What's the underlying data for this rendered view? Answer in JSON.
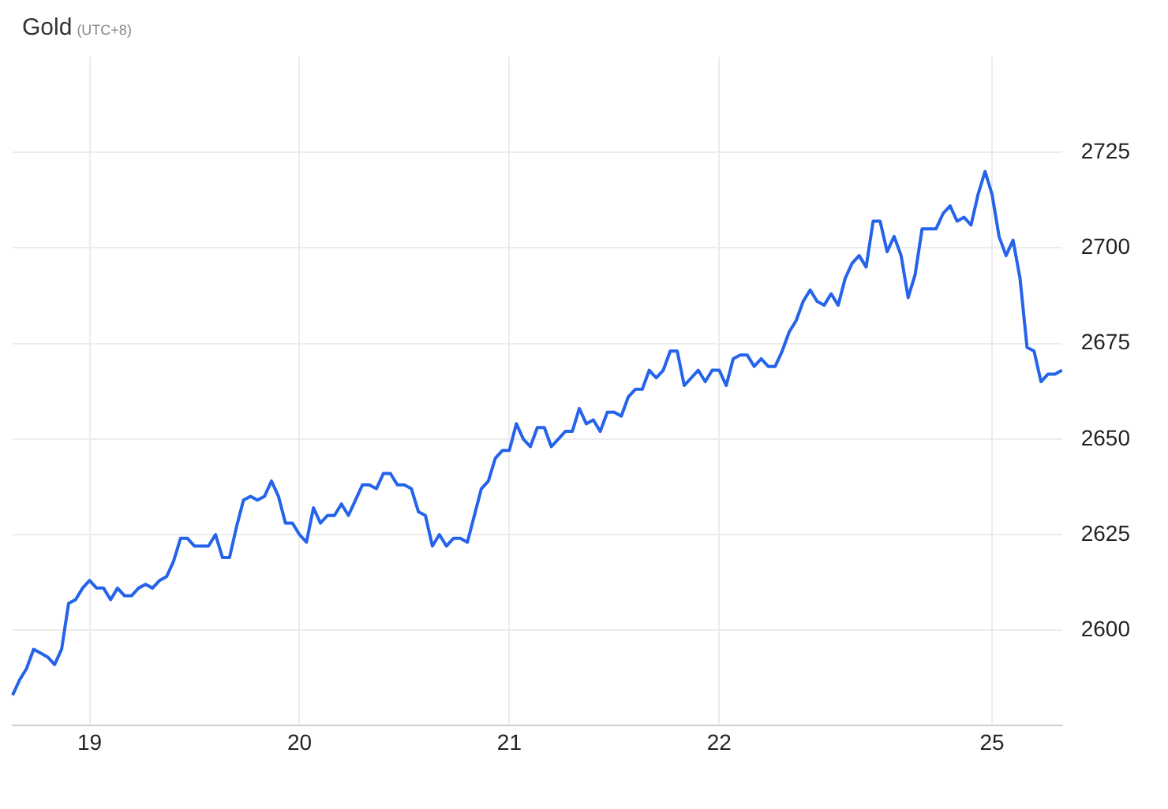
{
  "chart_data": {
    "type": "line",
    "title": "Gold",
    "subtitle": "(UTC+8)",
    "categories": [
      null,
      null,
      null,
      null,
      null,
      null,
      null,
      null,
      null,
      null,
      null,
      "19",
      null,
      null,
      null,
      null,
      null,
      null,
      null,
      null,
      null,
      null,
      null,
      null,
      null,
      null,
      null,
      null,
      null,
      null,
      null,
      null,
      null,
      null,
      null,
      null,
      null,
      null,
      null,
      null,
      null,
      "20",
      null,
      null,
      null,
      null,
      null,
      null,
      null,
      null,
      null,
      null,
      null,
      null,
      null,
      null,
      null,
      null,
      null,
      null,
      null,
      null,
      null,
      null,
      null,
      null,
      null,
      null,
      null,
      null,
      null,
      "21",
      null,
      null,
      null,
      null,
      null,
      null,
      null,
      null,
      null,
      null,
      null,
      null,
      null,
      null,
      null,
      null,
      null,
      null,
      null,
      null,
      null,
      null,
      null,
      null,
      null,
      null,
      null,
      null,
      null,
      "22",
      null,
      null,
      null,
      null,
      null,
      null,
      null,
      null,
      null,
      null,
      null,
      null,
      null,
      null,
      null,
      null,
      null,
      null,
      null,
      null,
      null,
      null,
      null,
      null,
      null,
      null,
      null,
      null,
      null,
      null,
      null,
      null,
      null,
      null,
      null,
      null,
      null,
      null,
      "25",
      null,
      null,
      null,
      null,
      null,
      null,
      null,
      null,
      null,
      null
    ],
    "series": [
      {
        "color": "#2563eb",
        "values": [
          2583,
          2587,
          2590,
          2595,
          2594,
          2593,
          2591,
          2595,
          2607,
          2608,
          2611,
          2613,
          2611,
          2611,
          2608,
          2611,
          2609,
          2609,
          2611,
          2612,
          2611,
          2613,
          2614,
          2618,
          2624,
          2624,
          2622,
          2622,
          2622,
          2625,
          2619,
          2619,
          2627,
          2634,
          2635,
          2634,
          2635,
          2639,
          2635,
          2628,
          2628,
          2625,
          2623,
          2632,
          2628,
          2630,
          2630,
          2633,
          2630,
          2634,
          2638,
          2638,
          2637,
          2641,
          2641,
          2638,
          2638,
          2637,
          2631,
          2630,
          2622,
          2625,
          2622,
          2624,
          2624,
          2623,
          2630,
          2637,
          2639,
          2645,
          2647,
          2647,
          2654,
          2650,
          2648,
          2653,
          2653,
          2648,
          2650,
          2652,
          2652,
          2658,
          2654,
          2655,
          2652,
          2657,
          2657,
          2656,
          2661,
          2663,
          2663,
          2668,
          2666,
          2668,
          2673,
          2673,
          2664,
          2666,
          2668,
          2665,
          2668,
          2668,
          2664,
          2671,
          2672,
          2672,
          2669,
          2671,
          2669,
          2669,
          2673,
          2678,
          2681,
          2686,
          2689,
          2686,
          2685,
          2688,
          2685,
          2692,
          2696,
          2698,
          2695,
          2707,
          2707,
          2699,
          2703,
          2698,
          2687,
          2693,
          2705,
          2705,
          2705,
          2709,
          2711,
          2707,
          2708,
          2706,
          2714,
          2720,
          2714,
          2703,
          2698,
          2702,
          2692,
          2674,
          2673,
          2665,
          2667,
          2667,
          2668
        ]
      }
    ],
    "ylim": [
      2575,
      2750
    ],
    "yticks": [
      2600,
      2625,
      2650,
      2675,
      2700,
      2725
    ],
    "grid": true,
    "legend": false,
    "marker": "none"
  }
}
